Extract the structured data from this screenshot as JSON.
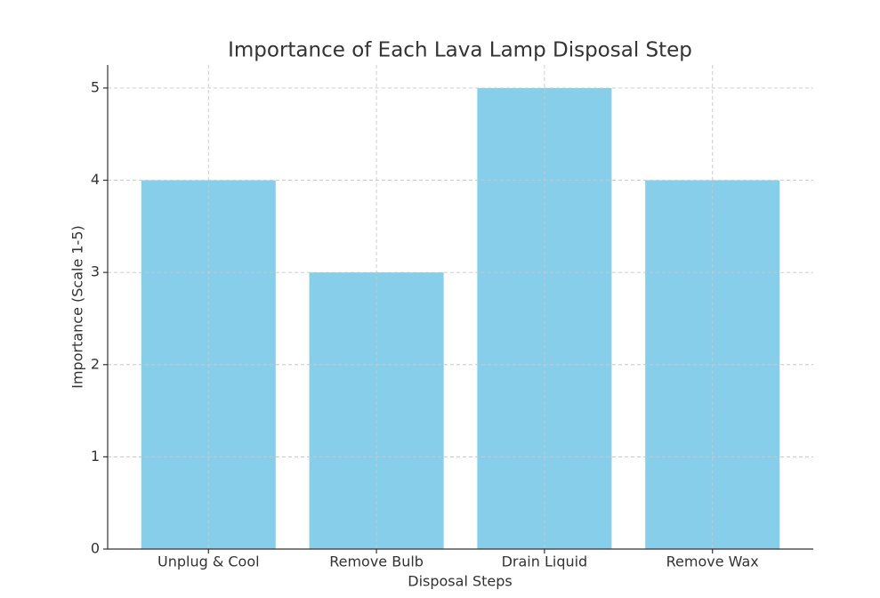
{
  "chart_data": {
    "type": "bar",
    "title": "Importance of Each Lava Lamp Disposal Step",
    "x_label": "Disposal Steps",
    "y_label": "Importance (Scale 1-5)",
    "categories": [
      "Unplug & Cool",
      "Remove Bulb",
      "Drain Liquid",
      "Remove Wax"
    ],
    "values": [
      4,
      3,
      5,
      4
    ],
    "color": "#87ceeb",
    "ylim": [
      0,
      5.25
    ],
    "yticks": [
      0,
      1,
      2,
      3,
      4,
      5
    ],
    "grid": true
  }
}
